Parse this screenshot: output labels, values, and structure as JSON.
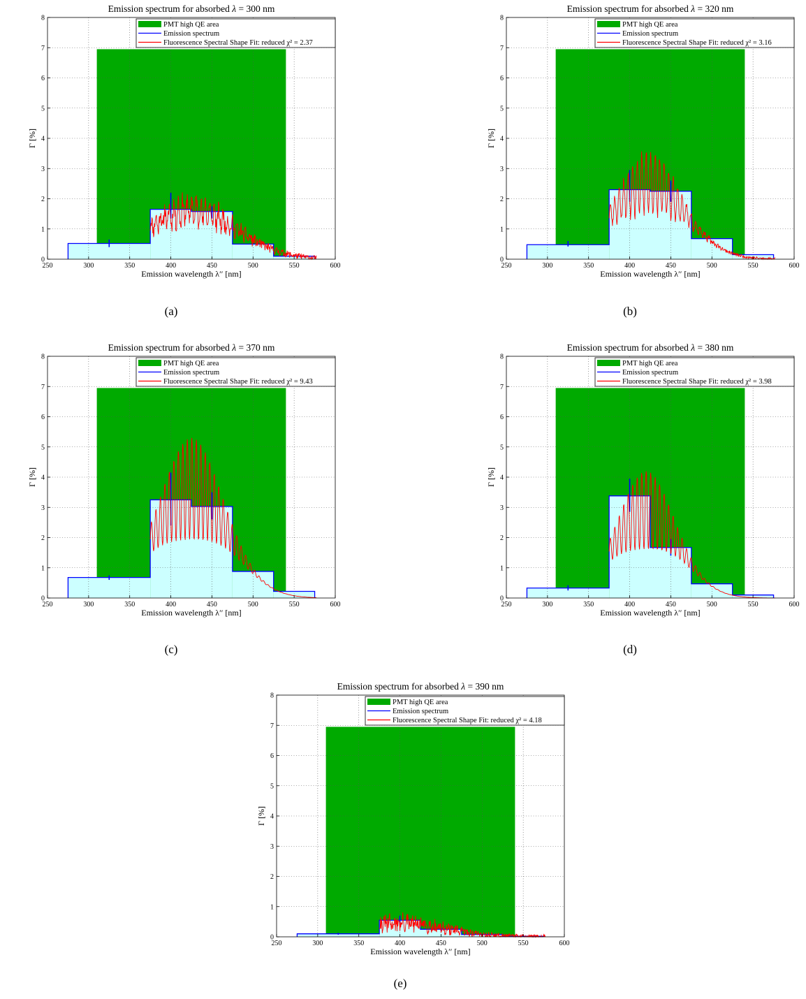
{
  "figure": {
    "panels": [
      {
        "caption": "(a)",
        "chart_data": {
          "type": "line",
          "title_prefix": "Emission spectrum for absorbed ",
          "title_symbol": "λ",
          "title_value": " = 300 nm",
          "xlabel": "Emission wavelength λ′′ [nm]",
          "ylabel": "Γ [%]",
          "xlim": [
            250,
            600
          ],
          "ylim": [
            0,
            8
          ],
          "xticks": [
            250,
            300,
            350,
            400,
            450,
            500,
            550,
            600
          ],
          "yticks": [
            0,
            1,
            2,
            3,
            4,
            5,
            6,
            7,
            8
          ],
          "grid": true,
          "legend_position": "top",
          "legend": [
            "PMT high QE area",
            "Emission spectrum",
            "Fluorescence Spectral Shape Fit: reduced χ² = 2.37"
          ],
          "qe_area": {
            "x": [
              310,
              540
            ],
            "y": 6.95
          },
          "emission_steps": [
            [
              275,
              375,
              0.52
            ],
            [
              375,
              425,
              1.65
            ],
            [
              425,
              475,
              1.58
            ],
            [
              475,
              525,
              0.5
            ],
            [
              525,
              575,
              0.1
            ]
          ],
          "error_bars": [
            [
              325,
              0.4,
              0.65
            ],
            [
              400,
              1.35,
              2.2
            ],
            [
              450,
              1.35,
              1.75
            ]
          ],
          "fit": {
            "start": 375,
            "end": 577,
            "center": 425,
            "width": 55,
            "peak": 1.62,
            "osc": 0.45,
            "noise": 0.22,
            "seed": 11
          }
        },
        "colors": {
          "qe": "#00aa00",
          "fill": "#ccffff",
          "emission": "#0000ff",
          "fit": "#ff0000"
        }
      },
      {
        "caption": "(b)",
        "chart_data": {
          "type": "line",
          "title_prefix": "Emission spectrum for absorbed ",
          "title_symbol": "λ",
          "title_value": " = 320 nm",
          "xlabel": "Emission wavelength λ′′ [nm]",
          "ylabel": "Γ [%]",
          "xlim": [
            250,
            600
          ],
          "ylim": [
            0,
            8
          ],
          "xticks": [
            250,
            300,
            350,
            400,
            450,
            500,
            550,
            600
          ],
          "yticks": [
            0,
            1,
            2,
            3,
            4,
            5,
            6,
            7,
            8
          ],
          "grid": true,
          "legend_position": "top",
          "legend": [
            "PMT high QE area",
            "Emission spectrum",
            "Fluorescence Spectral Shape Fit: reduced χ² = 3.16"
          ],
          "qe_area": {
            "x": [
              310,
              540
            ],
            "y": 6.95
          },
          "emission_steps": [
            [
              275,
              375,
              0.48
            ],
            [
              375,
              425,
              2.3
            ],
            [
              425,
              475,
              2.25
            ],
            [
              475,
              525,
              0.68
            ],
            [
              525,
              575,
              0.15
            ]
          ],
          "error_bars": [
            [
              325,
              0.42,
              0.6
            ],
            [
              400,
              1.9,
              2.95
            ],
            [
              450,
              1.9,
              2.6
            ]
          ],
          "fit": {
            "start": 375,
            "end": 577,
            "center": 423,
            "width": 45,
            "peak": 2.5,
            "osc": 1.0,
            "noise": 0.12,
            "seed": 23
          }
        },
        "colors": {
          "qe": "#00aa00",
          "fill": "#ccffff",
          "emission": "#0000ff",
          "fit": "#ff0000"
        }
      },
      {
        "caption": "(c)",
        "chart_data": {
          "type": "line",
          "title_prefix": "Emission spectrum for absorbed ",
          "title_symbol": "λ",
          "title_value": " = 370 nm",
          "xlabel": "Emission wavelength λ′′ [nm]",
          "ylabel": "Γ [%]",
          "xlim": [
            250,
            600
          ],
          "ylim": [
            0,
            8
          ],
          "xticks": [
            250,
            300,
            350,
            400,
            450,
            500,
            550,
            600
          ],
          "yticks": [
            0,
            1,
            2,
            3,
            4,
            5,
            6,
            7,
            8
          ],
          "grid": true,
          "legend_position": "top",
          "legend": [
            "PMT high QE area",
            "Emission spectrum",
            "Fluorescence Spectral Shape Fit: reduced χ² = 9.43"
          ],
          "qe_area": {
            "x": [
              310,
              540
            ],
            "y": 6.95
          },
          "emission_steps": [
            [
              275,
              375,
              0.68
            ],
            [
              375,
              425,
              3.25
            ],
            [
              425,
              475,
              3.03
            ],
            [
              475,
              525,
              0.88
            ],
            [
              525,
              575,
              0.22
            ]
          ],
          "error_bars": [
            [
              325,
              0.6,
              0.75
            ],
            [
              400,
              2.4,
              4.15
            ],
            [
              450,
              2.6,
              3.5
            ]
          ],
          "fit": {
            "start": 375,
            "end": 577,
            "center": 425,
            "width": 45,
            "peak": 3.6,
            "osc": 1.7,
            "noise": 0.0,
            "seed": 5
          }
        },
        "colors": {
          "qe": "#00aa00",
          "fill": "#ccffff",
          "emission": "#0000ff",
          "fit": "#ff0000"
        }
      },
      {
        "caption": "(d)",
        "chart_data": {
          "type": "line",
          "title_prefix": "Emission spectrum for absorbed ",
          "title_symbol": "λ",
          "title_value": " = 380 nm",
          "xlabel": "Emission wavelength λ′′ [nm]",
          "ylabel": "Γ [%]",
          "xlim": [
            250,
            600
          ],
          "ylim": [
            0,
            8
          ],
          "xticks": [
            250,
            300,
            350,
            400,
            450,
            500,
            550,
            600
          ],
          "yticks": [
            0,
            1,
            2,
            3,
            4,
            5,
            6,
            7,
            8
          ],
          "grid": true,
          "legend_position": "top",
          "legend": [
            "PMT high QE area",
            "Emission spectrum",
            "Fluorescence Spectral Shape Fit: reduced χ² = 3.98"
          ],
          "qe_area": {
            "x": [
              310,
              540
            ],
            "y": 6.95
          },
          "emission_steps": [
            [
              275,
              375,
              0.33
            ],
            [
              375,
              425,
              3.38
            ],
            [
              425,
              475,
              1.67
            ],
            [
              475,
              525,
              0.47
            ],
            [
              525,
              575,
              0.1
            ]
          ],
          "error_bars": [
            [
              325,
              0.25,
              0.42
            ],
            [
              400,
              2.85,
              3.95
            ],
            [
              450,
              1.4,
              1.95
            ]
          ],
          "fit": {
            "start": 375,
            "end": 577,
            "center": 420,
            "width": 40,
            "peak": 2.9,
            "osc": 1.3,
            "noise": 0.0,
            "seed": 9
          }
        },
        "colors": {
          "qe": "#00aa00",
          "fill": "#ccffff",
          "emission": "#0000ff",
          "fit": "#ff0000"
        }
      },
      {
        "caption": "(e)",
        "chart_data": {
          "type": "line",
          "title_prefix": "Emission spectrum for absorbed ",
          "title_symbol": "λ",
          "title_value": " = 390 nm",
          "xlabel": "Emission wavelength λ′′ [nm]",
          "ylabel": "Γ [%]",
          "xlim": [
            250,
            600
          ],
          "ylim": [
            0,
            8
          ],
          "xticks": [
            250,
            300,
            350,
            400,
            450,
            500,
            550,
            600
          ],
          "yticks": [
            0,
            1,
            2,
            3,
            4,
            5,
            6,
            7,
            8
          ],
          "grid": true,
          "legend_position": "top",
          "legend": [
            "PMT high QE area",
            "Emission spectrum",
            "Fluorescence Spectral Shape Fit: reduced χ² = 4.18"
          ],
          "qe_area": {
            "x": [
              310,
              540
            ],
            "y": 6.95
          },
          "emission_steps": [
            [
              275,
              375,
              0.1
            ],
            [
              375,
              425,
              0.55
            ],
            [
              425,
              475,
              0.25
            ],
            [
              475,
              525,
              0.08
            ],
            [
              525,
              575,
              0.02
            ]
          ],
          "error_bars": [
            [
              325,
              0.07,
              0.13
            ],
            [
              400,
              0.4,
              0.7
            ],
            [
              450,
              0.2,
              0.3
            ]
          ],
          "fit": {
            "start": 375,
            "end": 577,
            "center": 400,
            "width": 55,
            "peak": 0.45,
            "osc": 0.12,
            "noise": 0.18,
            "seed": 31
          }
        },
        "colors": {
          "qe": "#00aa00",
          "fill": "#ccffff",
          "emission": "#0000ff",
          "fit": "#ff0000"
        }
      }
    ]
  }
}
